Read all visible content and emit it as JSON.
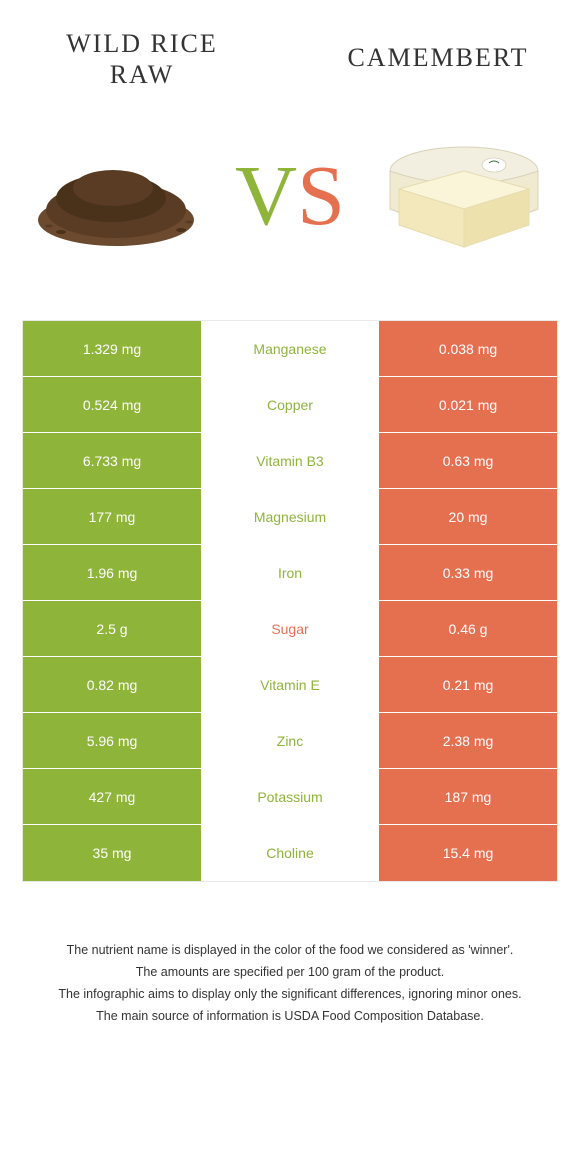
{
  "colors": {
    "left": "#8fb43a",
    "right": "#e57050",
    "mid_bg": "#ffffff",
    "border": "#e9e9e9",
    "text_dark": "#333333"
  },
  "header": {
    "left_title_line1": "Wild rice",
    "left_title_line2": "raw",
    "right_title": "Camembert"
  },
  "vs": {
    "v": "V",
    "s": "S"
  },
  "rows": [
    {
      "left": "1.329 mg",
      "label": "Manganese",
      "right": "0.038 mg",
      "winner": "left"
    },
    {
      "left": "0.524 mg",
      "label": "Copper",
      "right": "0.021 mg",
      "winner": "left"
    },
    {
      "left": "6.733 mg",
      "label": "Vitamin B3",
      "right": "0.63 mg",
      "winner": "left"
    },
    {
      "left": "177 mg",
      "label": "Magnesium",
      "right": "20 mg",
      "winner": "left"
    },
    {
      "left": "1.96 mg",
      "label": "Iron",
      "right": "0.33 mg",
      "winner": "left"
    },
    {
      "left": "2.5 g",
      "label": "Sugar",
      "right": "0.46 g",
      "winner": "right"
    },
    {
      "left": "0.82 mg",
      "label": "Vitamin E",
      "right": "0.21 mg",
      "winner": "left"
    },
    {
      "left": "5.96 mg",
      "label": "Zinc",
      "right": "2.38 mg",
      "winner": "left"
    },
    {
      "left": "427 mg",
      "label": "Potassium",
      "right": "187 mg",
      "winner": "left"
    },
    {
      "left": "35 mg",
      "label": "Choline",
      "right": "15.4 mg",
      "winner": "left"
    }
  ],
  "footer": {
    "line1": "The nutrient name is displayed in the color of the food we considered as 'winner'.",
    "line2": "The amounts are specified per 100 gram of the product.",
    "line3": "The infographic aims to display only the significant differences, ignoring minor ones.",
    "line4": "The main source of information is USDA Food Composition Database."
  }
}
